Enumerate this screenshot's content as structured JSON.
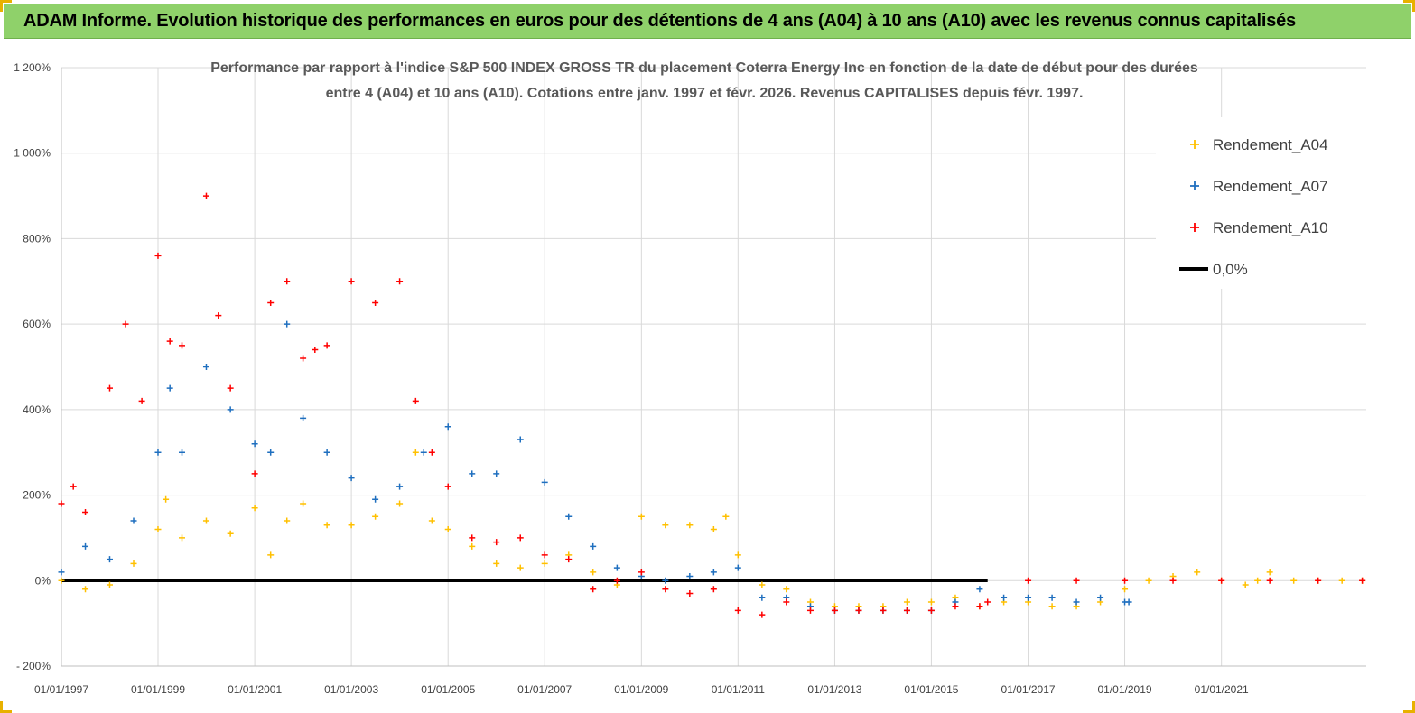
{
  "banner": {
    "title": "ADAM Informe. Evolution historique des performances en euros pour des détentions de 4 ans (A04) à 10 ans (A10) avec les revenus connus capitalisés",
    "background": "#8fd16a"
  },
  "chart_data": {
    "type": "scatter",
    "title_lines": [
      "Performance par rapport à l'indice S&P 500 INDEX GROSS TR  du placement Coterra Energy Inc en fonction de la date de début pour des durées",
      "entre 4 (A04) et 10 ans (A10). Cotations entre janv. 1997 et févr. 2026. Revenus CAPITALISES depuis févr. 1997."
    ],
    "xlabel": "",
    "ylabel": "",
    "x_range": [
      "1997-01-01",
      "2023-12-31"
    ],
    "ylim": [
      -200,
      1200
    ],
    "y_ticks": [
      -200,
      0,
      200,
      400,
      600,
      800,
      1000,
      1200
    ],
    "y_tick_labels": [
      "- 200%",
      "0%",
      "200%",
      "400%",
      "600%",
      "800%",
      "1 000%",
      "1 200%"
    ],
    "x_tick_labels": [
      "01/01/1997",
      "01/01/1999",
      "01/01/2001",
      "01/01/2003",
      "01/01/2005",
      "01/01/2007",
      "01/01/2009",
      "01/01/2011",
      "01/01/2013",
      "01/01/2015",
      "01/01/2017",
      "01/01/2019",
      "01/01/2021"
    ],
    "x_ticks": [
      "1997-01-01",
      "1999-01-01",
      "2001-01-01",
      "2003-01-01",
      "2005-01-01",
      "2007-01-01",
      "2009-01-01",
      "2011-01-01",
      "2013-01-01",
      "2015-01-01",
      "2017-01-01",
      "2019-01-01",
      "2021-01-01"
    ],
    "grid": true,
    "legend_position": "top-right",
    "series": [
      {
        "name": "Rendement_A04",
        "color": "#ffc000",
        "marker": "plus",
        "x": [
          "1997-01",
          "1997-07",
          "1998-01",
          "1998-07",
          "1999-01",
          "1999-03",
          "1999-07",
          "2000-01",
          "2000-07",
          "2001-01",
          "2001-05",
          "2001-09",
          "2002-01",
          "2002-07",
          "2003-01",
          "2003-07",
          "2004-01",
          "2004-05",
          "2004-09",
          "2005-01",
          "2005-07",
          "2006-01",
          "2006-07",
          "2007-01",
          "2007-07",
          "2008-01",
          "2008-07",
          "2009-01",
          "2009-07",
          "2010-01",
          "2010-07",
          "2010-10",
          "2011-01",
          "2011-07",
          "2012-01",
          "2012-07",
          "2013-01",
          "2013-07",
          "2014-01",
          "2014-07",
          "2015-01",
          "2015-07",
          "2016-01",
          "2016-07",
          "2017-01",
          "2017-07",
          "2018-01",
          "2018-07",
          "2019-01",
          "2019-07",
          "2020-01",
          "2020-07",
          "2021-01",
          "2021-07",
          "2021-10",
          "2022-01",
          "2022-07",
          "2023-01",
          "2023-07",
          "2023-12"
        ],
        "y": [
          0,
          -20,
          -10,
          40,
          120,
          190,
          100,
          140,
          110,
          170,
          60,
          140,
          180,
          130,
          130,
          150,
          180,
          300,
          140,
          120,
          80,
          40,
          30,
          40,
          60,
          20,
          -10,
          150,
          130,
          130,
          120,
          150,
          60,
          -10,
          -20,
          -50,
          -60,
          -60,
          -60,
          -50,
          -50,
          -40,
          -60,
          -50,
          -50,
          -60,
          -60,
          -50,
          -20,
          0,
          10,
          20,
          0,
          -10,
          0,
          20,
          0,
          0,
          0,
          0
        ]
      },
      {
        "name": "Rendement_A07",
        "color": "#1f6fbf",
        "marker": "plus",
        "x": [
          "1997-01",
          "1997-07",
          "1998-01",
          "1998-07",
          "1999-01",
          "1999-04",
          "1999-07",
          "2000-01",
          "2000-07",
          "2001-01",
          "2001-05",
          "2001-09",
          "2002-01",
          "2002-07",
          "2003-01",
          "2003-07",
          "2004-01",
          "2004-07",
          "2005-01",
          "2005-07",
          "2006-01",
          "2006-07",
          "2007-01",
          "2007-07",
          "2008-01",
          "2008-07",
          "2009-01",
          "2009-07",
          "2010-01",
          "2010-07",
          "2011-01",
          "2011-07",
          "2012-01",
          "2012-07",
          "2013-01",
          "2013-07",
          "2014-01",
          "2014-07",
          "2015-01",
          "2015-07",
          "2016-01",
          "2016-07",
          "2017-01",
          "2017-07",
          "2018-01",
          "2018-07",
          "2019-01",
          "2019-02"
        ],
        "y": [
          20,
          80,
          50,
          140,
          300,
          450,
          300,
          500,
          400,
          320,
          300,
          600,
          380,
          300,
          240,
          190,
          220,
          300,
          360,
          250,
          250,
          330,
          230,
          150,
          80,
          30,
          10,
          0,
          10,
          20,
          30,
          -40,
          -40,
          -60,
          -70,
          -70,
          -70,
          -70,
          -70,
          -50,
          -20,
          -40,
          -40,
          -40,
          -50,
          -40,
          -50,
          -50
        ]
      },
      {
        "name": "Rendement_A10",
        "color": "#ff0000",
        "marker": "plus",
        "x": [
          "1997-01",
          "1997-04",
          "1997-07",
          "1998-01",
          "1998-05",
          "1998-09",
          "1999-01",
          "1999-04",
          "1999-07",
          "2000-01",
          "2000-04",
          "2000-07",
          "2001-01",
          "2001-05",
          "2001-09",
          "2002-01",
          "2002-04",
          "2002-07",
          "2003-01",
          "2003-07",
          "2004-01",
          "2004-05",
          "2004-09",
          "2005-01",
          "2005-07",
          "2006-01",
          "2006-07",
          "2007-01",
          "2007-07",
          "2008-01",
          "2008-07",
          "2009-01",
          "2009-07",
          "2010-01",
          "2010-07",
          "2011-01",
          "2011-07",
          "2012-01",
          "2012-07",
          "2013-01",
          "2013-07",
          "2014-01",
          "2014-07",
          "2015-01",
          "2015-07",
          "2016-01",
          "2016-03",
          "2017-01",
          "2018-01",
          "2019-01",
          "2020-01",
          "2021-01",
          "2022-01",
          "2023-01",
          "2023-12"
        ],
        "y": [
          180,
          220,
          160,
          450,
          600,
          420,
          760,
          560,
          550,
          900,
          620,
          450,
          250,
          650,
          700,
          520,
          540,
          550,
          700,
          650,
          700,
          420,
          300,
          220,
          100,
          90,
          100,
          60,
          50,
          -20,
          0,
          20,
          -20,
          -30,
          -20,
          -70,
          -80,
          -50,
          -70,
          -70,
          -70,
          -70,
          -70,
          -70,
          -60,
          -60,
          -50,
          0,
          0,
          0,
          0,
          0,
          0,
          0,
          0
        ]
      },
      {
        "name": "0,0%",
        "color": "#000000",
        "marker": "line",
        "x": [
          "1997-01-01",
          "2016-03-01"
        ],
        "y": [
          0,
          0
        ]
      }
    ]
  }
}
